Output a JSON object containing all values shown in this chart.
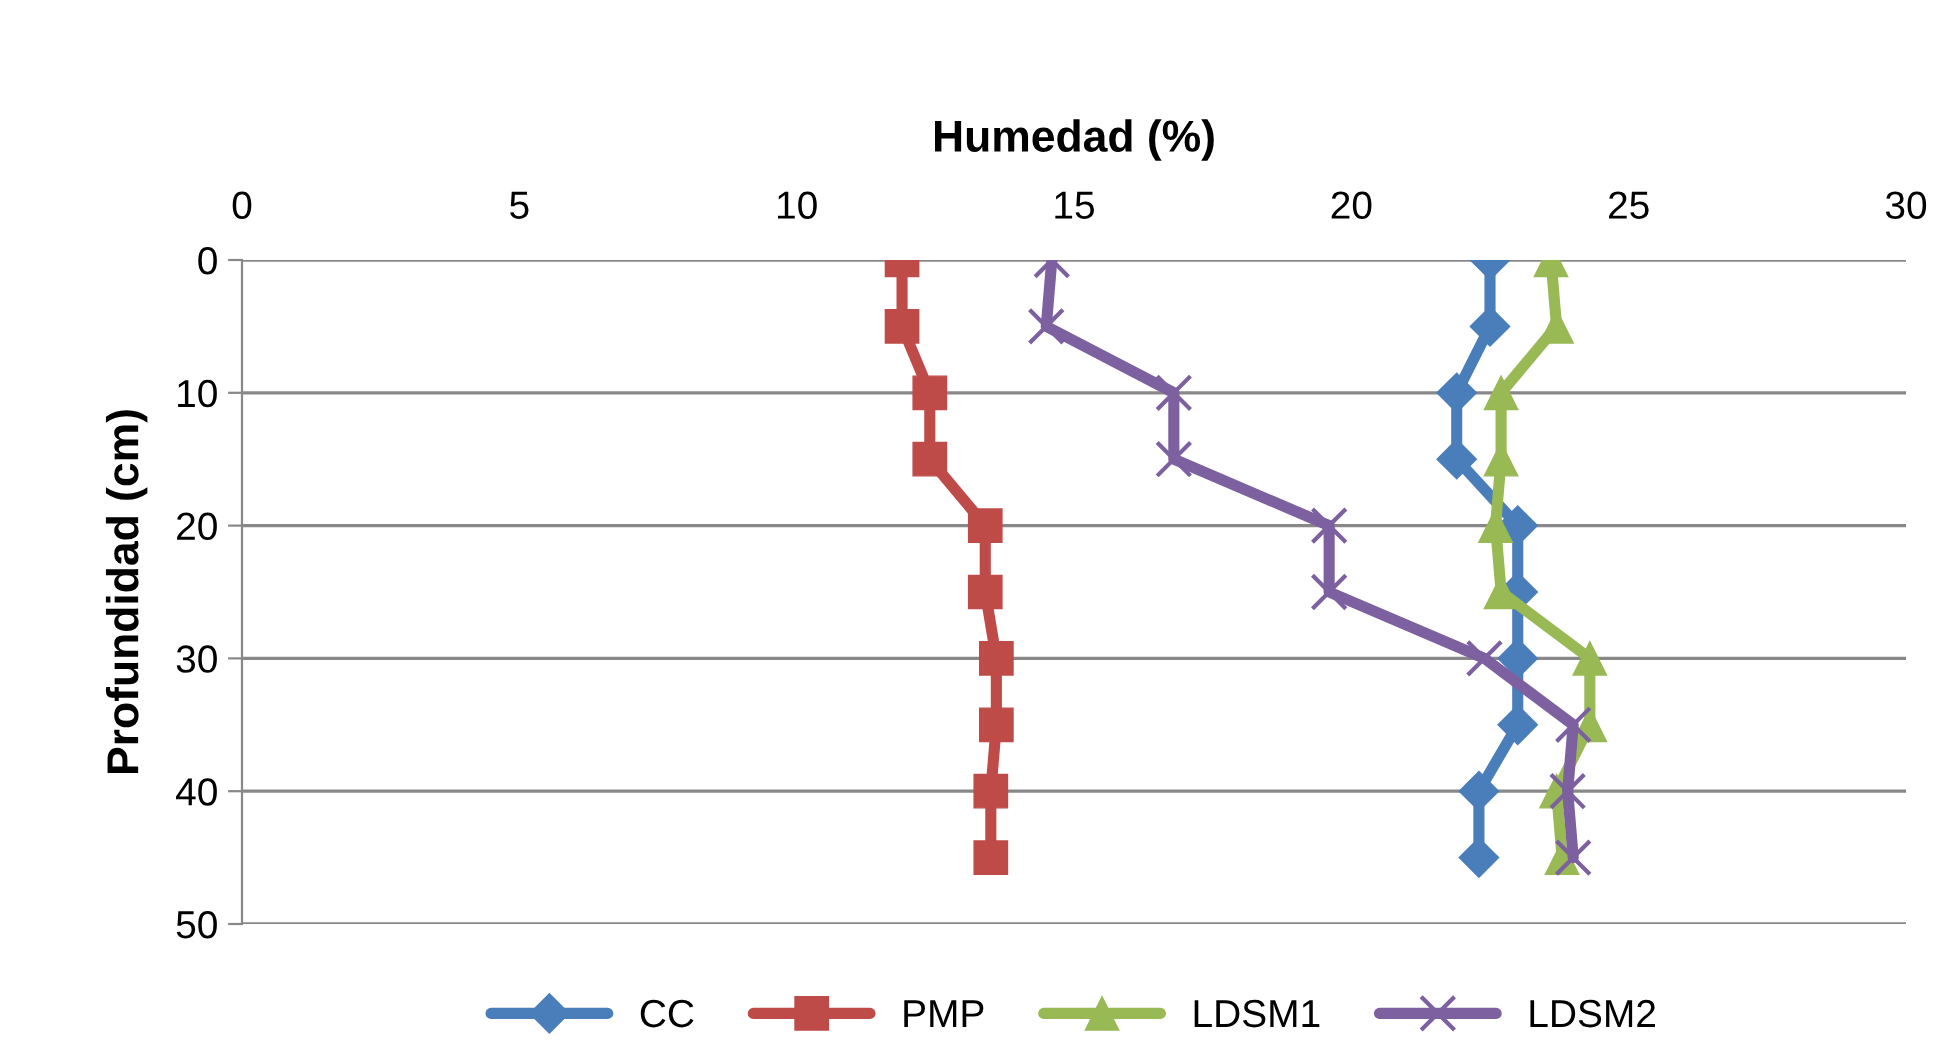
{
  "chart_data": {
    "type": "line",
    "orientation": "horizontal",
    "xlabel": "Humedad (%)",
    "ylabel": "Profundidad (cm)",
    "x": [
      0,
      5,
      10,
      15,
      20,
      25,
      30,
      35,
      40,
      45
    ],
    "series": [
      {
        "name": "CC",
        "color": "#4a7ebb",
        "marker": "diamond",
        "values": [
          22.5,
          22.5,
          21.9,
          21.9,
          23.0,
          23.0,
          23.0,
          23.0,
          22.3,
          22.3
        ]
      },
      {
        "name": "PMP",
        "color": "#be4b48",
        "marker": "square",
        "values": [
          11.9,
          11.9,
          12.4,
          12.4,
          13.4,
          13.4,
          13.6,
          13.6,
          13.5,
          13.5
        ]
      },
      {
        "name": "LDSM1",
        "color": "#98b954",
        "marker": "triangle",
        "values": [
          23.6,
          23.7,
          22.7,
          22.7,
          22.6,
          22.7,
          24.3,
          24.3,
          23.7,
          23.8
        ]
      },
      {
        "name": "LDSM2",
        "color": "#7d60a0",
        "marker": "cross",
        "values": [
          14.6,
          14.5,
          16.8,
          16.8,
          19.6,
          19.6,
          22.4,
          24.0,
          23.9,
          24.0
        ]
      }
    ],
    "xlim": [
      0,
      30
    ],
    "xticks": [
      0,
      5,
      10,
      15,
      20,
      25,
      30
    ],
    "ylim": [
      50,
      0
    ],
    "yticks": [
      0,
      10,
      20,
      30,
      40,
      50
    ],
    "grid": "y",
    "legend": "bottom"
  }
}
